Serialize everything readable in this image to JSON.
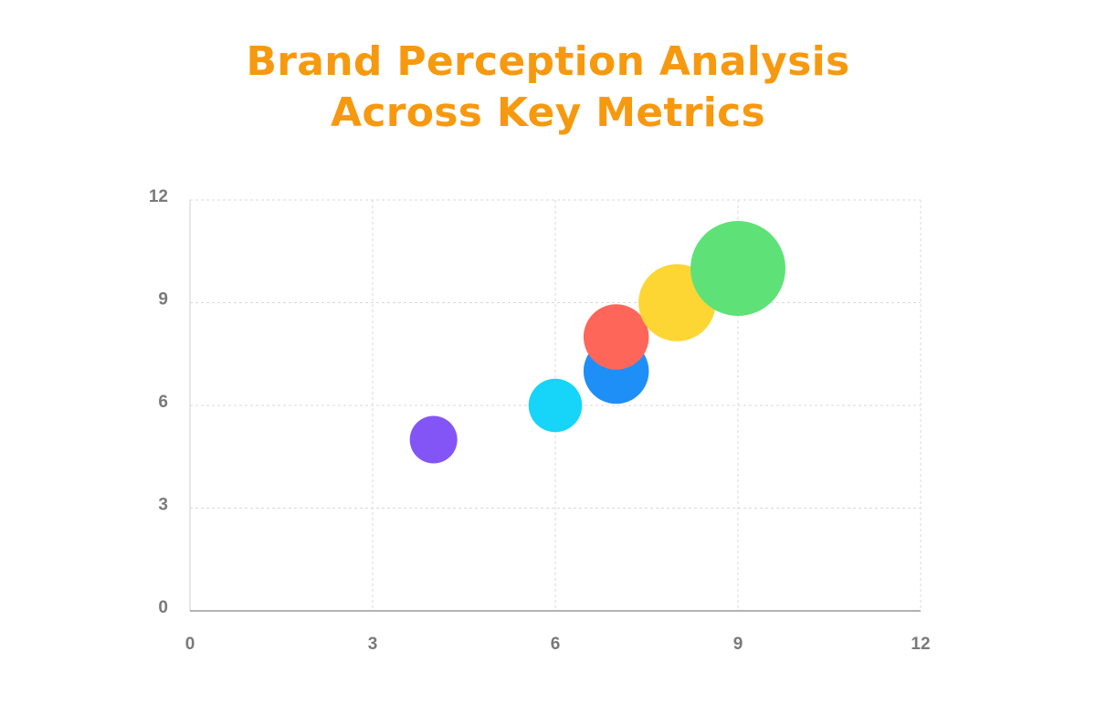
{
  "chart_data": {
    "type": "bubble",
    "title_lines": [
      "Brand Perception Analysis",
      "Across Key Metrics"
    ],
    "xlabel": "",
    "ylabel": "",
    "xlim": [
      0,
      12
    ],
    "ylim": [
      0,
      12
    ],
    "x_ticks": [
      0,
      3,
      6,
      9,
      12
    ],
    "y_ticks": [
      0,
      3,
      6,
      9,
      12
    ],
    "grid": true,
    "points": [
      {
        "x": 4,
        "y": 5,
        "size": 4,
        "color": "#8455f6"
      },
      {
        "x": 6,
        "y": 6,
        "size": 4.5,
        "color": "#17d4f9"
      },
      {
        "x": 7,
        "y": 7,
        "size": 5.5,
        "color": "#1f8ff8"
      },
      {
        "x": 7,
        "y": 8,
        "size": 5.5,
        "color": "#ff665a"
      },
      {
        "x": 8,
        "y": 9,
        "size": 6.5,
        "color": "#fdd634"
      },
      {
        "x": 9,
        "y": 10,
        "size": 8,
        "color": "#5ee277"
      }
    ]
  }
}
